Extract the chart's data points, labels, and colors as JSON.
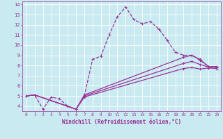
{
  "background_color": "#c8eaf0",
  "line_color": "#993399",
  "grid_color": "#ffffff",
  "xlabel": "Windchill (Refroidissement éolien,°C)",
  "xlabel_fontsize": 5.5,
  "xtick_fontsize": 4.5,
  "ytick_fontsize": 5,
  "xlim": [
    -0.5,
    23.5
  ],
  "ylim": [
    3.5,
    14.3
  ],
  "xticks": [
    0,
    1,
    2,
    3,
    4,
    5,
    6,
    7,
    8,
    9,
    10,
    11,
    12,
    13,
    14,
    15,
    16,
    17,
    18,
    19,
    20,
    21,
    22,
    23
  ],
  "yticks": [
    4,
    5,
    6,
    7,
    8,
    9,
    10,
    11,
    12,
    13,
    14
  ],
  "series": [
    {
      "x": [
        0,
        1,
        2,
        3,
        4,
        5,
        6,
        7,
        8,
        9,
        10,
        11,
        12,
        13,
        14,
        15,
        16,
        17,
        18,
        19,
        20,
        21,
        22,
        23
      ],
      "y": [
        5.0,
        5.1,
        3.7,
        4.9,
        4.7,
        4.0,
        3.7,
        5.0,
        8.6,
        8.9,
        11.0,
        12.8,
        13.75,
        12.5,
        12.1,
        12.3,
        11.6,
        10.5,
        9.3,
        9.0,
        9.0,
        8.5,
        7.9,
        7.9
      ],
      "dashed": true,
      "linewidth": 0.9
    },
    {
      "x": [
        0,
        1,
        6,
        7,
        19,
        20,
        21,
        22,
        23
      ],
      "y": [
        5.0,
        5.1,
        3.7,
        5.1,
        8.8,
        9.0,
        8.6,
        7.9,
        7.9
      ],
      "dashed": false,
      "linewidth": 0.9
    },
    {
      "x": [
        0,
        1,
        6,
        7,
        19,
        20,
        21,
        22,
        23
      ],
      "y": [
        5.0,
        5.1,
        3.7,
        5.0,
        8.2,
        8.4,
        8.1,
        7.85,
        7.8
      ],
      "dashed": false,
      "linewidth": 0.9
    },
    {
      "x": [
        0,
        1,
        6,
        7,
        19,
        20,
        21,
        22,
        23
      ],
      "y": [
        5.0,
        5.1,
        3.7,
        4.9,
        7.7,
        7.8,
        7.65,
        7.75,
        7.7
      ],
      "dashed": false,
      "linewidth": 0.9
    }
  ]
}
